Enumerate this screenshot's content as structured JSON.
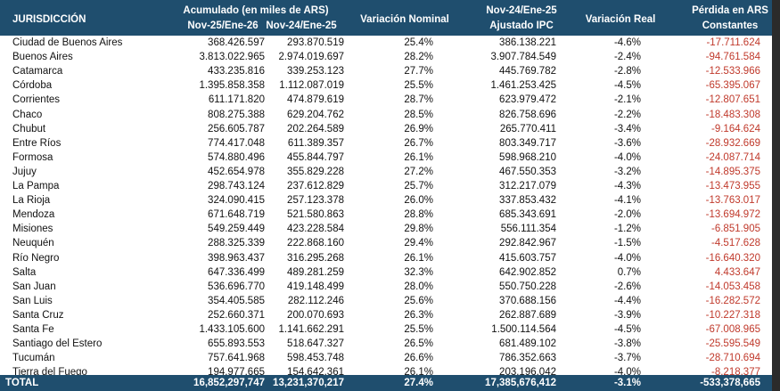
{
  "header": {
    "group": "Acumulado (en miles de ARS)",
    "columns": [
      [
        "JURISDICCIÓN"
      ],
      [
        "Nov-25/Ene-26"
      ],
      [
        "Nov-24/Ene-25"
      ],
      [
        "Variación Nominal"
      ],
      [
        "Nov-24/Ene-25",
        "Ajustado IPC"
      ],
      [
        "Variación Real"
      ],
      [
        "Pérdida en ARS",
        "Constantes"
      ]
    ]
  },
  "table": {
    "rows": [
      [
        "Ciudad de Buenos Aires",
        "368.426.597",
        "293.870.519",
        "25.4%",
        "386.138.221",
        "-4.6%",
        "-17.711.624"
      ],
      [
        "Buenos Aires",
        "3.813.022.965",
        "2.974.019.697",
        "28.2%",
        "3.907.784.549",
        "-2.4%",
        "-94.761.584"
      ],
      [
        "Catamarca",
        "433.235.816",
        "339.253.123",
        "27.7%",
        "445.769.782",
        "-2.8%",
        "-12.533.966"
      ],
      [
        "Córdoba",
        "1.395.858.358",
        "1.112.087.019",
        "25.5%",
        "1.461.253.425",
        "-4.5%",
        "-65.395.067"
      ],
      [
        "Corrientes",
        "611.171.820",
        "474.879.619",
        "28.7%",
        "623.979.472",
        "-2.1%",
        "-12.807.651"
      ],
      [
        "Chaco",
        "808.275.388",
        "629.204.762",
        "28.5%",
        "826.758.696",
        "-2.2%",
        "-18.483.308"
      ],
      [
        "Chubut",
        "256.605.787",
        "202.264.589",
        "26.9%",
        "265.770.411",
        "-3.4%",
        "-9.164.624"
      ],
      [
        "Entre Ríos",
        "774.417.048",
        "611.389.357",
        "26.7%",
        "803.349.717",
        "-3.6%",
        "-28.932.669"
      ],
      [
        "Formosa",
        "574.880.496",
        "455.844.797",
        "26.1%",
        "598.968.210",
        "-4.0%",
        "-24.087.714"
      ],
      [
        "Jujuy",
        "452.654.978",
        "355.829.228",
        "27.2%",
        "467.550.353",
        "-3.2%",
        "-14.895.375"
      ],
      [
        "La Pampa",
        "298.743.124",
        "237.612.829",
        "25.7%",
        "312.217.079",
        "-4.3%",
        "-13.473.955"
      ],
      [
        "La Rioja",
        "324.090.415",
        "257.123.378",
        "26.0%",
        "337.853.432",
        "-4.1%",
        "-13.763.017"
      ],
      [
        "Mendoza",
        "671.648.719",
        "521.580.863",
        "28.8%",
        "685.343.691",
        "-2.0%",
        "-13.694.972"
      ],
      [
        "Misiones",
        "549.259.449",
        "423.228.584",
        "29.8%",
        "556.111.354",
        "-1.2%",
        "-6.851.905"
      ],
      [
        "Neuquén",
        "288.325.339",
        "222.868.160",
        "29.4%",
        "292.842.967",
        "-1.5%",
        "-4.517.628"
      ],
      [
        "Río Negro",
        "398.963.437",
        "316.295.268",
        "26.1%",
        "415.603.757",
        "-4.0%",
        "-16.640.320"
      ],
      [
        "Salta",
        "647.336.499",
        "489.281.259",
        "32.3%",
        "642.902.852",
        "0.7%",
        "4.433.647"
      ],
      [
        "San Juan",
        "536.696.770",
        "419.148.499",
        "28.0%",
        "550.750.228",
        "-2.6%",
        "-14.053.458"
      ],
      [
        "San Luis",
        "354.405.585",
        "282.112.246",
        "25.6%",
        "370.688.156",
        "-4.4%",
        "-16.282.572"
      ],
      [
        "Santa Cruz",
        "252.660.371",
        "200.070.693",
        "26.3%",
        "262.887.689",
        "-3.9%",
        "-10.227.318"
      ],
      [
        "Santa Fe",
        "1.433.105.600",
        "1.141.662.291",
        "25.5%",
        "1.500.114.564",
        "-4.5%",
        "-67.008.965"
      ],
      [
        "Santiago del Estero",
        "655.893.553",
        "518.647.327",
        "26.5%",
        "681.489.102",
        "-3.8%",
        "-25.595.549"
      ],
      [
        "Tucumán",
        "757.641.968",
        "598.453.748",
        "26.6%",
        "786.352.663",
        "-3.7%",
        "-28.710.694"
      ],
      [
        "Tierra del Fuego",
        "194.977.665",
        "154.642.361",
        "26.1%",
        "203.196.042",
        "-4.0%",
        "-8.218.377"
      ]
    ],
    "total": [
      "TOTAL",
      "16,852,297,747",
      "13,231,370,217",
      "27.4%",
      "17,385,676,412",
      "-3.1%",
      "-533,378,665"
    ]
  }
}
